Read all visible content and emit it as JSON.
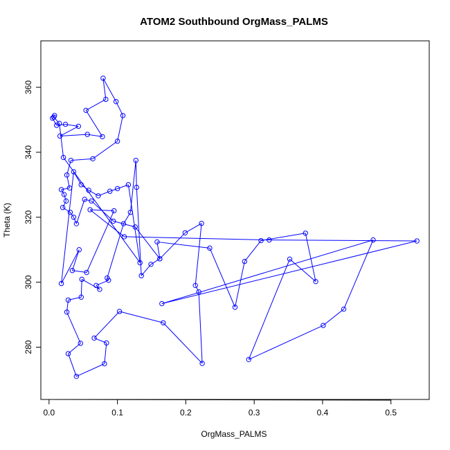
{
  "chart_data": {
    "type": "scatter",
    "title": "ATOM2 Southbound OrgMass_PALMS",
    "xlabel": "OrgMass_PALMS",
    "ylabel": "Theta (K)",
    "xlim": [
      -0.012,
      0.556
    ],
    "ylim": [
      263.9,
      374.3
    ],
    "x_ticks": [
      0.0,
      0.1,
      0.2,
      0.3,
      0.4,
      0.5
    ],
    "x_tick_labels": [
      "0.0",
      "0.1",
      "0.2",
      "0.3",
      "0.4",
      "0.5"
    ],
    "y_ticks": [
      280,
      300,
      320,
      340,
      360
    ],
    "y_tick_labels": [
      "280",
      "300",
      "320",
      "340",
      "360"
    ],
    "connected": true,
    "grid": false,
    "legend": "none",
    "series": [
      {
        "color": "#0000ff",
        "points": [
          [
            0.008,
            351.3
          ],
          [
            0.005,
            350.5
          ],
          [
            0.011,
            348.3
          ],
          [
            0.024,
            348.6
          ],
          [
            0.043,
            348.0
          ],
          [
            0.016,
            345.0
          ],
          [
            0.056,
            345.5
          ],
          [
            0.078,
            344.8
          ],
          [
            0.054,
            352.9
          ],
          [
            0.083,
            356.3
          ],
          [
            0.079,
            362.8
          ],
          [
            0.098,
            355.6
          ],
          [
            0.108,
            351.3
          ],
          [
            0.1,
            343.4
          ],
          [
            0.064,
            338.0
          ],
          [
            0.032,
            337.5
          ],
          [
            0.026,
            333.0
          ],
          [
            0.03,
            329.0
          ],
          [
            0.018,
            328.5
          ],
          [
            0.022,
            327.0
          ],
          [
            0.025,
            325.0
          ],
          [
            0.02,
            323.0
          ],
          [
            0.031,
            321.5
          ],
          [
            0.036,
            320.0
          ],
          [
            0.04,
            318.0
          ],
          [
            0.052,
            325.5
          ],
          [
            0.062,
            325.0
          ],
          [
            0.094,
            318.8
          ],
          [
            0.126,
            317.0
          ],
          [
            0.162,
            307.2
          ],
          [
            0.149,
            305.5
          ],
          [
            0.135,
            302.0
          ],
          [
            0.128,
            329.2
          ],
          [
            0.127,
            337.5
          ],
          [
            0.119,
            321.5
          ],
          [
            0.109,
            318.0
          ],
          [
            0.085,
            301.3
          ],
          [
            0.087,
            300.6
          ],
          [
            0.069,
            299.0
          ],
          [
            0.074,
            297.8
          ],
          [
            0.048,
            300.9
          ],
          [
            0.047,
            295.4
          ],
          [
            0.028,
            294.5
          ],
          [
            0.026,
            290.8
          ],
          [
            0.046,
            281.2
          ],
          [
            0.028,
            278.0
          ],
          [
            0.04,
            271.0
          ],
          [
            0.081,
            274.9
          ],
          [
            0.084,
            281.3
          ],
          [
            0.066,
            282.8
          ],
          [
            0.103,
            291.0
          ],
          [
            0.167,
            287.5
          ],
          [
            0.224,
            275.0
          ],
          [
            0.219,
            297.0
          ],
          [
            0.214,
            299.0
          ],
          [
            0.223,
            318.1
          ],
          [
            0.199,
            315.2
          ],
          [
            0.162,
            307.2
          ],
          [
            0.158,
            312.4
          ],
          [
            0.235,
            310.5
          ],
          [
            0.272,
            292.3
          ],
          [
            0.286,
            306.4
          ],
          [
            0.31,
            312.8
          ],
          [
            0.375,
            315.1
          ],
          [
            0.39,
            300.2
          ],
          [
            0.352,
            307.1
          ],
          [
            0.292,
            276.2
          ],
          [
            0.401,
            286.7
          ],
          [
            0.431,
            291.7
          ],
          [
            0.474,
            313.0
          ],
          [
            0.165,
            293.4
          ],
          [
            0.538,
            312.7
          ],
          [
            0.322,
            313.0
          ],
          [
            0.11,
            314.0
          ],
          [
            0.06,
            322.3
          ],
          [
            0.095,
            322.0
          ],
          [
            0.055,
            303.0
          ],
          [
            0.034,
            303.6
          ],
          [
            0.044,
            310.0
          ],
          [
            0.018,
            299.6
          ],
          [
            0.036,
            334.0
          ],
          [
            0.047,
            330.0
          ],
          [
            0.058,
            328.3
          ],
          [
            0.072,
            326.6
          ],
          [
            0.089,
            328.0
          ],
          [
            0.1,
            328.8
          ],
          [
            0.116,
            330.0
          ],
          [
            0.133,
            306.0
          ],
          [
            0.021,
            338.4
          ],
          [
            0.015,
            348.9
          ],
          [
            0.007,
            350.8
          ]
        ]
      }
    ]
  }
}
